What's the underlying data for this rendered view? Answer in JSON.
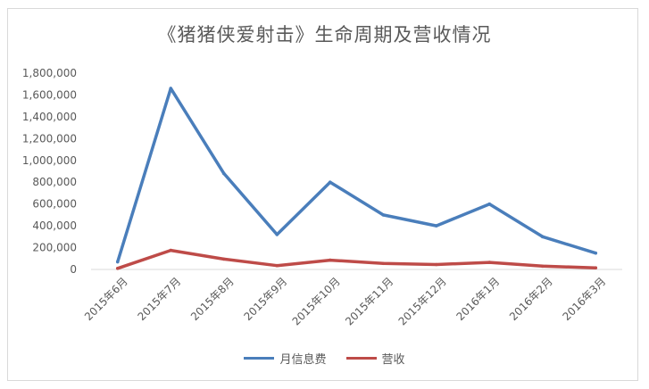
{
  "chart_data": {
    "type": "line",
    "title": "《猪猪侠爱射击》生命周期及营收情况",
    "categories": [
      "2015年6月",
      "2015年7月",
      "2015年8月",
      "2015年9月",
      "2015年10月",
      "2015年11月",
      "2015年12月",
      "2016年1月",
      "2016年2月",
      "2016年3月"
    ],
    "series": [
      {
        "name": "月信息费",
        "color": "#4a7ebb",
        "values": [
          70000,
          1660000,
          880000,
          320000,
          800000,
          500000,
          400000,
          600000,
          300000,
          150000
        ]
      },
      {
        "name": "营收",
        "color": "#be4b48",
        "values": [
          10000,
          175000,
          95000,
          35000,
          85000,
          55000,
          45000,
          65000,
          30000,
          15000
        ]
      }
    ],
    "y_ticks": [
      "0",
      "200,000",
      "400,000",
      "600,000",
      "800,000",
      "1,000,000",
      "1,200,000",
      "1,400,000",
      "1,600,000",
      "1,800,000"
    ],
    "ylim": [
      0,
      1800000
    ],
    "legend_position": "bottom",
    "grid": false
  }
}
